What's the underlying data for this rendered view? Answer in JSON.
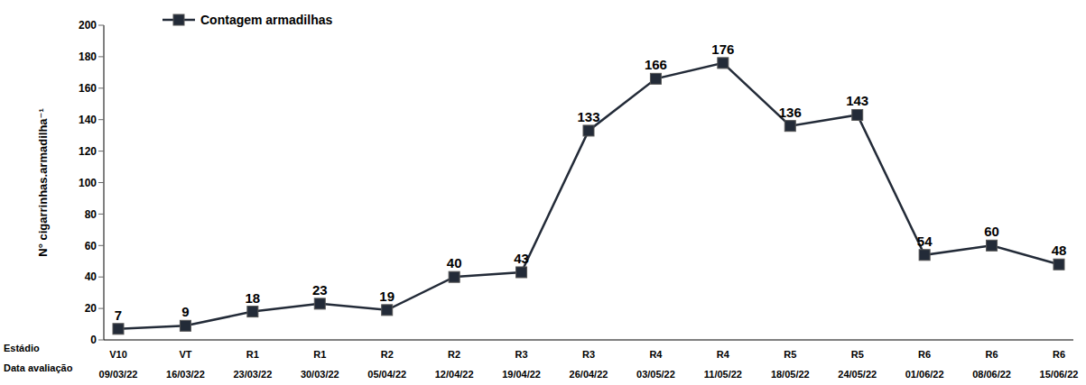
{
  "chart_data": {
    "type": "line",
    "y_label": "N° cigarrinhas.armadilha⁻¹",
    "categories": [
      "09/03/22",
      "16/03/22",
      "23/03/22",
      "30/03/22",
      "05/04/22",
      "12/04/22",
      "19/04/22",
      "26/04/22",
      "03/05/22",
      "11/05/22",
      "18/05/22",
      "24/05/22",
      "01/06/22",
      "08/06/22",
      "15/06/22"
    ],
    "stages": [
      "V10",
      "VT",
      "R1",
      "R1",
      "R2",
      "R2",
      "R3",
      "R3",
      "R4",
      "R4",
      "R5",
      "R5",
      "R6",
      "R6",
      "R6"
    ],
    "row_labels": [
      "Estádio",
      "Data avaliação"
    ],
    "series": [
      {
        "name": "Contagem armadilhas",
        "color": "#232b38",
        "marker": "square",
        "values": [
          7,
          9,
          18,
          23,
          19,
          40,
          43,
          133,
          166,
          176,
          136,
          143,
          54,
          60,
          48
        ]
      }
    ],
    "ylim": [
      0,
      200
    ],
    "yticks": [
      0,
      20,
      40,
      60,
      80,
      100,
      120,
      140,
      160,
      180,
      200
    ],
    "grid": false,
    "legend": "upper left",
    "data_labels": true
  }
}
